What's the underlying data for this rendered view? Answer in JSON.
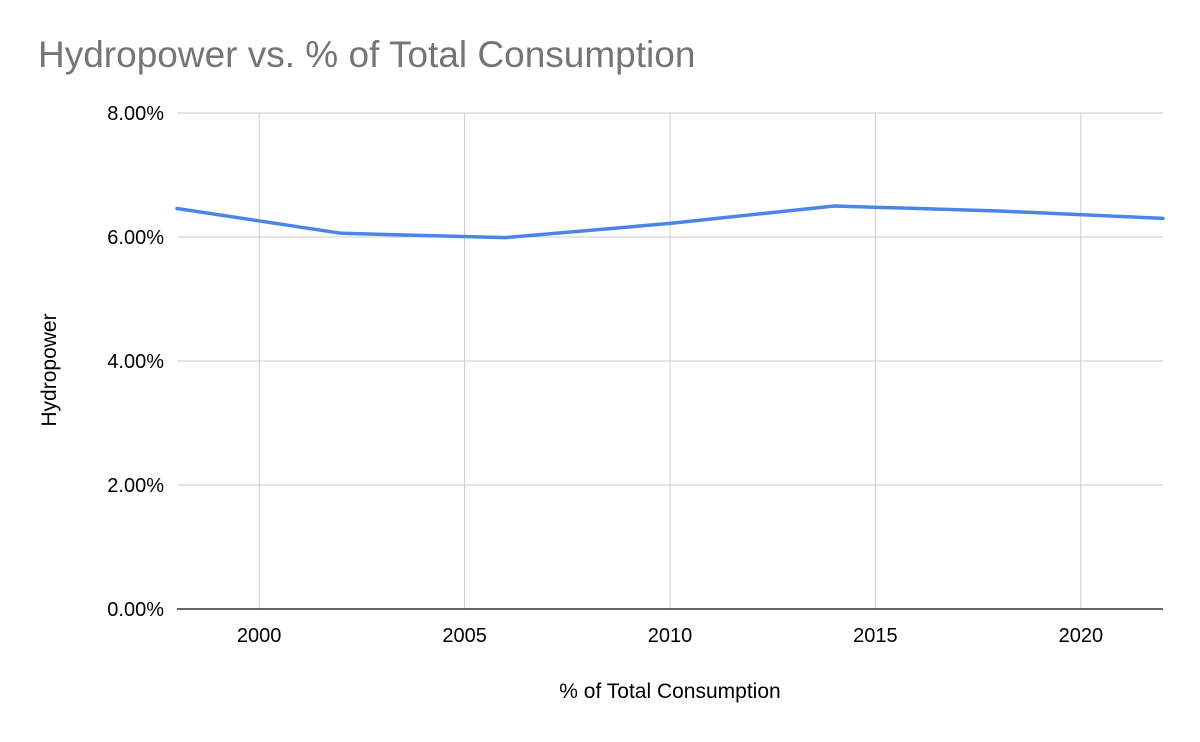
{
  "chart_data": {
    "type": "line",
    "title": "Hydropower vs. % of Total Consumption",
    "xlabel": "% of Total Consumption",
    "ylabel": "Hydropower",
    "x_ticks": [
      2000,
      2005,
      2010,
      2015,
      2020
    ],
    "y_ticks": [
      0,
      2,
      4,
      6,
      8
    ],
    "y_tick_labels": [
      "0.00%",
      "2.00%",
      "4.00%",
      "6.00%",
      "8.00%"
    ],
    "xlim": [
      1998,
      2022
    ],
    "ylim": [
      0,
      8
    ],
    "grid": true,
    "legend": "none",
    "colors": {
      "line": "#4a86e8",
      "grid": "#cccccc",
      "axis": "#333333",
      "title": "#757575"
    },
    "series": [
      {
        "x": [
          1998,
          2002,
          2006,
          2010,
          2014,
          2018,
          2022
        ],
        "values": [
          6.46,
          6.06,
          5.99,
          6.22,
          6.5,
          6.42,
          6.3
        ]
      }
    ]
  }
}
